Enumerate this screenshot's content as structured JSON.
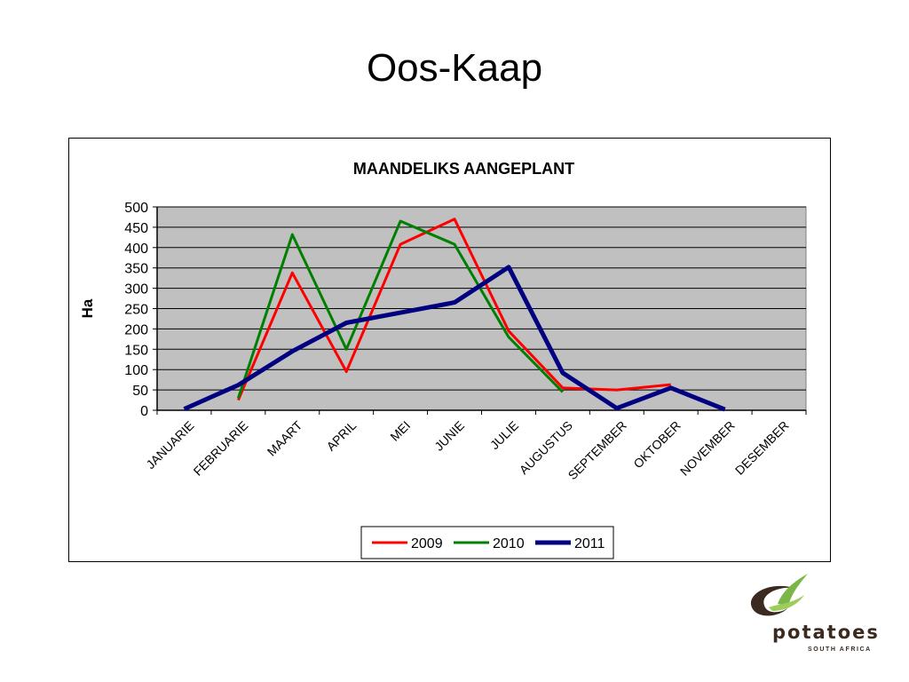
{
  "slide": {
    "title": "Oos-Kaap"
  },
  "chart_data": {
    "type": "line",
    "title": "MAANDELIKS AANGEPLANT",
    "ylabel": "Ha",
    "xlabel": "",
    "ylim": [
      0,
      500
    ],
    "yticks": [
      0,
      50,
      100,
      150,
      200,
      250,
      300,
      350,
      400,
      450,
      500
    ],
    "grid": true,
    "legend_position": "bottom",
    "categories": [
      "JANUARIE",
      "FEBRUARIE",
      "MAART",
      "APRIL",
      "MEI",
      "JUNIE",
      "JULIE",
      "AUGUSTUS",
      "SEPTEMBER",
      "OKTOBER",
      "NOVEMBER",
      "DESEMBER"
    ],
    "series": [
      {
        "name": "2009",
        "color": "#ff0000",
        "values": [
          null,
          25,
          338,
          95,
          408,
          470,
          195,
          55,
          50,
          63,
          null,
          null
        ]
      },
      {
        "name": "2010",
        "color": "#008000",
        "values": [
          null,
          30,
          432,
          150,
          465,
          408,
          180,
          45,
          null,
          null,
          null,
          null
        ]
      },
      {
        "name": "2011",
        "color": "#000080",
        "values": [
          3,
          62,
          145,
          215,
          240,
          265,
          352,
          92,
          5,
          55,
          2,
          null
        ]
      }
    ]
  },
  "logo": {
    "word": "potatoes",
    "subtitle": "SOUTH AFRICA",
    "colors": {
      "swoosh_dark": "#3a2a20",
      "swoosh_green": "#7ab648"
    }
  }
}
